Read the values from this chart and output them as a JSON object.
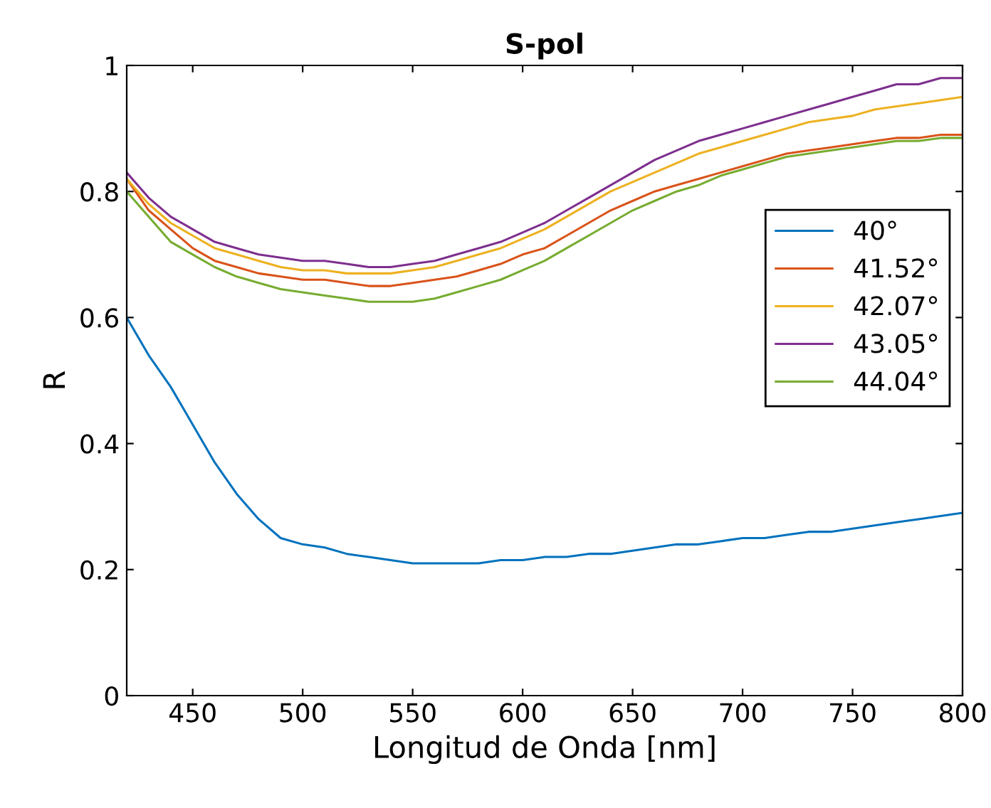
{
  "chart_data": {
    "type": "line",
    "title": "S-pol",
    "xlabel": "Longitud de Onda [nm]",
    "ylabel": "R",
    "x": [
      420,
      430,
      440,
      450,
      460,
      470,
      480,
      490,
      500,
      510,
      520,
      530,
      540,
      550,
      560,
      570,
      580,
      590,
      600,
      610,
      620,
      630,
      640,
      650,
      660,
      670,
      680,
      690,
      700,
      710,
      720,
      730,
      740,
      750,
      760,
      770,
      780,
      790,
      800
    ],
    "series": [
      {
        "name": "40°",
        "color": "#0072bd",
        "values": [
          0.6,
          0.54,
          0.49,
          0.43,
          0.37,
          0.32,
          0.28,
          0.25,
          0.24,
          0.235,
          0.225,
          0.22,
          0.215,
          0.21,
          0.21,
          0.21,
          0.21,
          0.215,
          0.215,
          0.22,
          0.22,
          0.225,
          0.225,
          0.23,
          0.235,
          0.24,
          0.24,
          0.245,
          0.25,
          0.25,
          0.255,
          0.26,
          0.26,
          0.265,
          0.27,
          0.275,
          0.28,
          0.285,
          0.29
        ]
      },
      {
        "name": "41.52°",
        "color": "#d95319",
        "values": [
          0.82,
          0.77,
          0.74,
          0.71,
          0.69,
          0.68,
          0.67,
          0.665,
          0.66,
          0.66,
          0.655,
          0.65,
          0.65,
          0.655,
          0.66,
          0.665,
          0.675,
          0.685,
          0.7,
          0.71,
          0.73,
          0.75,
          0.77,
          0.785,
          0.8,
          0.81,
          0.82,
          0.83,
          0.84,
          0.85,
          0.86,
          0.865,
          0.87,
          0.875,
          0.88,
          0.885,
          0.885,
          0.89,
          0.89
        ]
      },
      {
        "name": "42.07°",
        "color": "#edb120",
        "values": [
          0.82,
          0.78,
          0.75,
          0.73,
          0.71,
          0.7,
          0.69,
          0.68,
          0.675,
          0.675,
          0.67,
          0.67,
          0.67,
          0.675,
          0.68,
          0.69,
          0.7,
          0.71,
          0.725,
          0.74,
          0.76,
          0.78,
          0.8,
          0.815,
          0.83,
          0.845,
          0.86,
          0.87,
          0.88,
          0.89,
          0.9,
          0.91,
          0.915,
          0.92,
          0.93,
          0.935,
          0.94,
          0.945,
          0.95
        ]
      },
      {
        "name": "43.05°",
        "color": "#7e2f8e",
        "values": [
          0.83,
          0.79,
          0.76,
          0.74,
          0.72,
          0.71,
          0.7,
          0.695,
          0.69,
          0.69,
          0.685,
          0.68,
          0.68,
          0.685,
          0.69,
          0.7,
          0.71,
          0.72,
          0.735,
          0.75,
          0.77,
          0.79,
          0.81,
          0.83,
          0.85,
          0.865,
          0.88,
          0.89,
          0.9,
          0.91,
          0.92,
          0.93,
          0.94,
          0.95,
          0.96,
          0.97,
          0.97,
          0.98,
          0.98
        ]
      },
      {
        "name": "44.04°",
        "color": "#77ac30",
        "values": [
          0.8,
          0.76,
          0.72,
          0.7,
          0.68,
          0.665,
          0.655,
          0.645,
          0.64,
          0.635,
          0.63,
          0.625,
          0.625,
          0.625,
          0.63,
          0.64,
          0.65,
          0.66,
          0.675,
          0.69,
          0.71,
          0.73,
          0.75,
          0.77,
          0.785,
          0.8,
          0.81,
          0.825,
          0.835,
          0.845,
          0.855,
          0.86,
          0.865,
          0.87,
          0.875,
          0.88,
          0.88,
          0.885,
          0.885
        ]
      }
    ],
    "xlim": [
      420,
      800
    ],
    "xticks": [
      450,
      500,
      550,
      600,
      650,
      700,
      750,
      800
    ],
    "ylim": [
      0,
      1
    ],
    "yticks": [
      0,
      0.2,
      0.4,
      0.6,
      0.8,
      1
    ],
    "legend": "right",
    "grid": false
  }
}
